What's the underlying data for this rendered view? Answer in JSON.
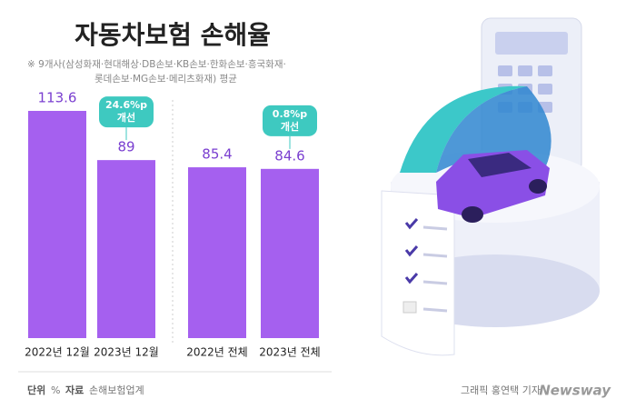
{
  "chart_data": {
    "type": "bar",
    "title": "자동차보험 손해율",
    "subtitle": [
      "※ 9개사(삼성화재·현대해상·DB손보·KB손보·한화손보·흥국화재·",
      "롯데손보·MG손보·메리츠화재) 평균"
    ],
    "categories": [
      "2022년 12월",
      "2023년 12월",
      "2022년 전체",
      "2023년 전체"
    ],
    "values": [
      113.6,
      89,
      85.4,
      84.6
    ],
    "color": "#a560ef",
    "annotations": [
      {
        "lines": [
          "24.6%p",
          "개선"
        ],
        "category": 1
      },
      {
        "lines": [
          "0.8%p",
          "개선"
        ],
        "category": 3
      }
    ]
  },
  "footer": {
    "unit_label": "단위",
    "unit": "%",
    "source_label": "자료",
    "source": "손해보험업계",
    "credit": "그래픽 홍연택 기자",
    "brand": "Newsway"
  }
}
